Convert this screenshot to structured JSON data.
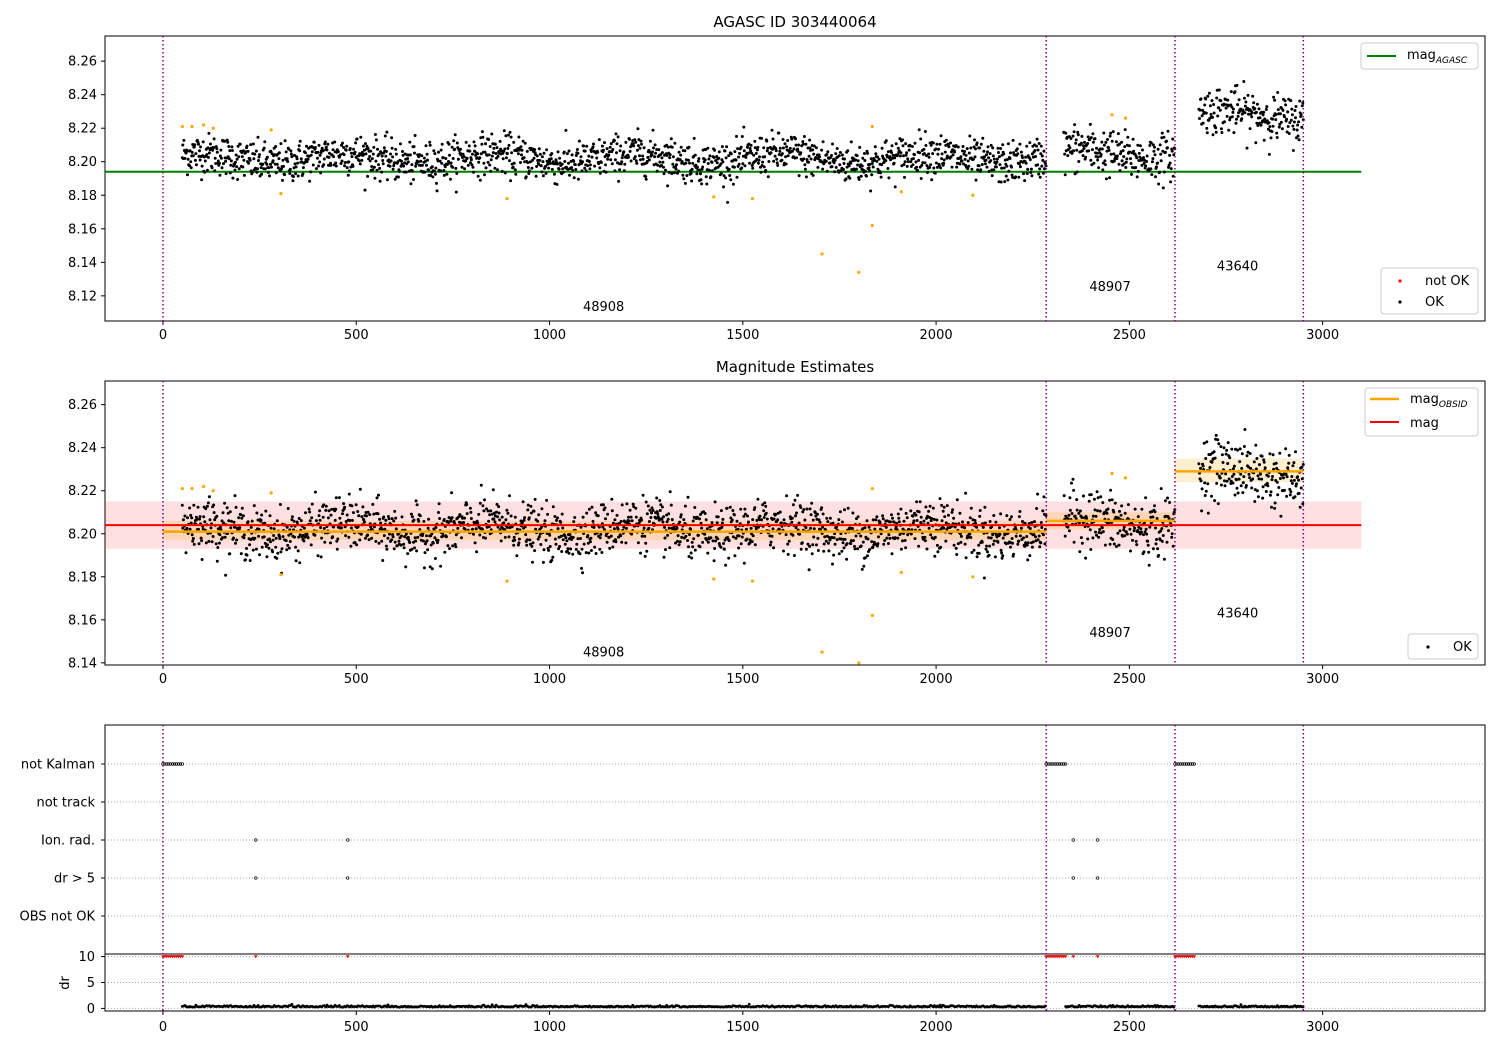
{
  "chart_data": [
    {
      "type": "scatter",
      "title": "AGASC ID 303440064",
      "xlim": [
        -150,
        3420
      ],
      "ylim": [
        8.105,
        8.275
      ],
      "xticks": [
        0,
        500,
        1000,
        1500,
        2000,
        2500,
        3000
      ],
      "yticks": [
        8.12,
        8.14,
        8.16,
        8.18,
        8.2,
        8.22,
        8.24,
        8.26
      ],
      "obsid_boundaries": [
        0,
        2285,
        2618,
        2950
      ],
      "obsid_labels": [
        {
          "text": "48908",
          "x": 1140,
          "y": 8.111
        },
        {
          "text": "48907",
          "x": 2450,
          "y": 8.123
        },
        {
          "text": "43640",
          "x": 2780,
          "y": 8.135
        }
      ],
      "mag_agasc": 8.194,
      "mag_agasc_range": [
        0,
        3100
      ],
      "segments": [
        {
          "x": [
            50,
            2285
          ],
          "mean": 8.202,
          "sd": 0.006
        },
        {
          "x": [
            2330,
            2618
          ],
          "mean": 8.205,
          "sd": 0.007
        },
        {
          "x": [
            2680,
            2950
          ],
          "mean": 8.228,
          "sd": 0.007
        }
      ],
      "outliers": [
        {
          "x": 50,
          "y": 8.221
        },
        {
          "x": 75,
          "y": 8.221
        },
        {
          "x": 105,
          "y": 8.222
        },
        {
          "x": 130,
          "y": 8.22
        },
        {
          "x": 280,
          "y": 8.219
        },
        {
          "x": 305,
          "y": 8.181
        },
        {
          "x": 890,
          "y": 8.178
        },
        {
          "x": 1425,
          "y": 8.179
        },
        {
          "x": 1525,
          "y": 8.178
        },
        {
          "x": 1705,
          "y": 8.145
        },
        {
          "x": 1800,
          "y": 8.134
        },
        {
          "x": 1835,
          "y": 8.162
        },
        {
          "x": 1835,
          "y": 8.221
        },
        {
          "x": 1910,
          "y": 8.182
        },
        {
          "x": 2095,
          "y": 8.18
        },
        {
          "x": 2455,
          "y": 8.228
        },
        {
          "x": 2490,
          "y": 8.226
        }
      ],
      "legend": [
        {
          "label": "mag",
          "subscript": "AGASC",
          "color": "#008000",
          "kind": "line"
        },
        {
          "label": "not OK",
          "color": "#ff0000",
          "kind": "marker"
        },
        {
          "label": "OK",
          "color": "#000000",
          "kind": "marker"
        }
      ]
    },
    {
      "type": "scatter",
      "title": "Magnitude Estimates",
      "xlim": [
        -150,
        3420
      ],
      "ylim": [
        8.139,
        8.271
      ],
      "xticks": [
        0,
        500,
        1000,
        1500,
        2000,
        2500,
        3000
      ],
      "yticks": [
        8.14,
        8.16,
        8.18,
        8.2,
        8.22,
        8.24,
        8.26
      ],
      "obsid_boundaries": [
        0,
        2285,
        2618,
        2950
      ],
      "obsid_labels": [
        {
          "text": "48908",
          "x": 1140,
          "y": 8.143
        },
        {
          "text": "48907",
          "x": 2450,
          "y": 8.152
        },
        {
          "text": "43640",
          "x": 2780,
          "y": 8.161
        }
      ],
      "mag": 8.204,
      "mag_band": [
        8.193,
        8.215
      ],
      "mag_range": [
        0,
        3100
      ],
      "mag_obsid": [
        {
          "x": [
            0,
            2285
          ],
          "value": 8.201,
          "band": [
            8.197,
            8.206
          ]
        },
        {
          "x": [
            2285,
            2618
          ],
          "value": 8.206,
          "band": [
            8.202,
            8.21
          ]
        },
        {
          "x": [
            2618,
            2950
          ],
          "value": 8.229,
          "band": [
            8.224,
            8.235
          ]
        }
      ],
      "legend": [
        {
          "label": "mag",
          "subscript": "OBSID",
          "color": "#ffa500",
          "kind": "line"
        },
        {
          "label": "mag",
          "color": "#ff0000",
          "kind": "line"
        },
        {
          "label": "OK",
          "color": "#000000",
          "kind": "marker"
        }
      ]
    },
    {
      "type": "scatter",
      "title": "",
      "xlim": [
        -150,
        3420
      ],
      "flag_rows": [
        "not Kalman",
        "not track",
        "Ion. rad.",
        "dr > 5",
        "OBS not OK"
      ],
      "flag_points": {
        "not Kalman": [
          [
            0,
            50
          ],
          [
            2285,
            2335
          ],
          [
            2618,
            2670
          ]
        ],
        "not track": [],
        "Ion. rad.": [
          [
            240,
            240
          ],
          [
            478,
            478
          ],
          [
            2355,
            2355
          ],
          [
            2418,
            2418
          ]
        ],
        "dr > 5": [
          [
            240,
            240
          ],
          [
            478,
            478
          ],
          [
            2355,
            2355
          ],
          [
            2418,
            2418
          ]
        ],
        "OBS not OK": []
      },
      "dr_ylabel": "dr",
      "dr_yticks": [
        0,
        5,
        10
      ],
      "dr_ylim": [
        -0.5,
        10.5
      ],
      "dr_high_points": [
        [
          0,
          50
        ],
        [
          240,
          240
        ],
        [
          478,
          478
        ],
        [
          2285,
          2335
        ],
        [
          2355,
          2355
        ],
        [
          2418,
          2418
        ],
        [
          2618,
          2670
        ]
      ],
      "dr_baseline_segments": [
        [
          50,
          2285
        ],
        [
          2335,
          2618
        ],
        [
          2680,
          2950
        ]
      ],
      "xticks": [
        0,
        500,
        1000,
        1500,
        2000,
        2500,
        3000
      ],
      "obsid_boundaries": [
        0,
        2285,
        2618,
        2950
      ]
    }
  ]
}
